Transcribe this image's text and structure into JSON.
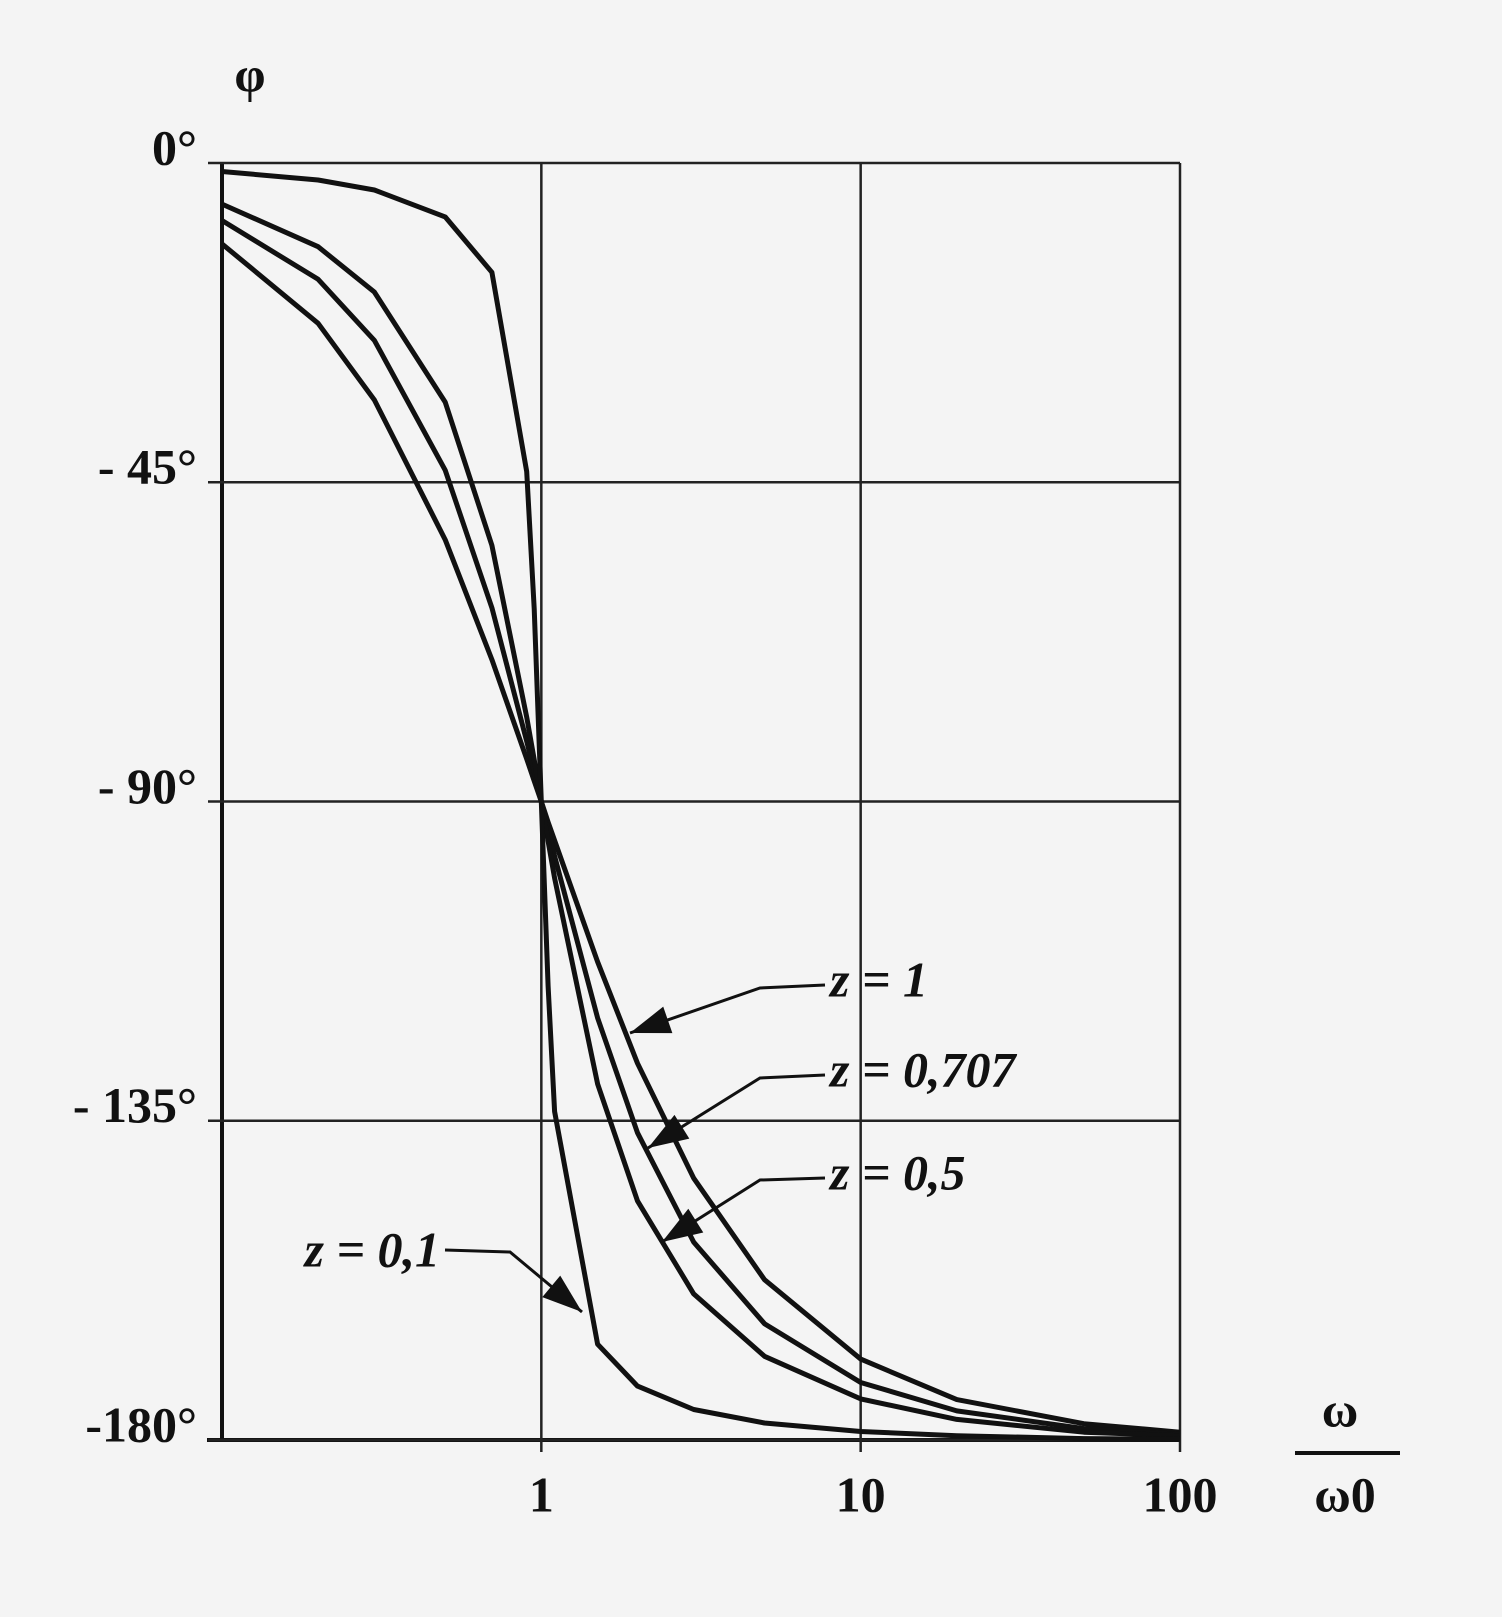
{
  "chart_data": {
    "type": "line",
    "y_label": "φ",
    "x_label": [
      "ω",
      "ω0"
    ],
    "log_x": true,
    "grid": true,
    "color": "#111111",
    "xlim": [
      0.1,
      100
    ],
    "xticks": [
      1,
      10,
      100
    ],
    "ylim": [
      -180,
      0
    ],
    "yticks": [
      {
        "value": 0,
        "label": "0°"
      },
      {
        "value": -45,
        "label": "- 45°"
      },
      {
        "value": -90,
        "label": "- 90°"
      },
      {
        "value": -135,
        "label": "- 135°"
      },
      {
        "value": -180,
        "label": "-180°"
      }
    ],
    "x": [
      0.1,
      0.2,
      0.3,
      0.5,
      0.7,
      0.9,
      0.95,
      1,
      1.05,
      1.1,
      1.5,
      2,
      3,
      5,
      10,
      20,
      50,
      100
    ],
    "series": [
      {
        "name": "z = 1",
        "values": [
          -11.4,
          -22.6,
          -33.4,
          -53.1,
          -70.0,
          -84.0,
          -87.1,
          -90,
          -92.9,
          -95.5,
          -112.6,
          -126.9,
          -143.1,
          -157.4,
          -168.6,
          -174.3,
          -177.7,
          -178.9
        ]
      },
      {
        "name": "z = 0,707",
        "values": [
          -8.1,
          -16.4,
          -25.0,
          -43.3,
          -62.7,
          -81.5,
          -85.8,
          -90,
          -94.0,
          -97.7,
          -120.5,
          -136.7,
          -152.1,
          -163.6,
          -171.9,
          -175.9,
          -178.4,
          -179.2
        ]
      },
      {
        "name": "z = 0,5",
        "values": [
          -5.8,
          -11.8,
          -18.2,
          -33.7,
          -53.9,
          -78.1,
          -84.1,
          -90,
          -95.6,
          -100.8,
          -129.8,
          -146.3,
          -159.4,
          -168.2,
          -174.2,
          -177.1,
          -178.9,
          -179.4
        ]
      },
      {
        "name": "z = 0,1",
        "values": [
          -1.2,
          -2.4,
          -3.8,
          -7.6,
          -15.4,
          -43.5,
          -62.8,
          -90,
          -116.0,
          -133.7,
          -166.5,
          -172.4,
          -175.7,
          -177.6,
          -178.8,
          -179.4,
          -179.8,
          -179.9
        ]
      }
    ]
  }
}
